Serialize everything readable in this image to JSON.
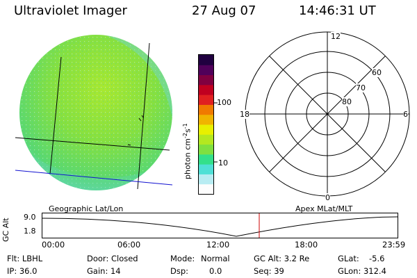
{
  "header": {
    "instrument": "Ultraviolet Imager",
    "date": "27 Aug 07",
    "time": "14:46:31 UT"
  },
  "colorbar": {
    "unit_label": "photon cm",
    "unit_sup1": "-2",
    "unit_s": "s",
    "unit_sup2": "-1",
    "ticks": [
      "100",
      "10"
    ],
    "colors": [
      "#fdfdfd",
      "#b8ecf2",
      "#4fe0d6",
      "#33e08a",
      "#7fe040",
      "#b4e820",
      "#e8f000",
      "#f0b400",
      "#f07a00",
      "#e02020",
      "#c00020",
      "#800040",
      "#50005a",
      "#200040"
    ]
  },
  "polar": {
    "clock_labels": [
      "12",
      "18",
      "6",
      "0"
    ],
    "lat_labels": [
      "60",
      "70",
      "80"
    ]
  },
  "labels": {
    "left_caption": "Geographic Lat/Lon",
    "right_caption": "Apex MLat/MLT"
  },
  "orbit": {
    "ylabel": "GC Alt",
    "yticks": [
      "9.0",
      "1.8"
    ],
    "xticks": [
      "00:00",
      "06:00",
      "12:00",
      "18:00",
      "23:59"
    ],
    "current_time_marker_color": "#cc0000"
  },
  "info": {
    "flt": "Flt: LBHL",
    "ip": "IP: 36.0",
    "door": "Door: Closed",
    "gain": "Gain: 14",
    "mode_label": "Mode:",
    "mode_value": "Normal",
    "dsp_label": "Dsp:",
    "dsp_value": "0.0",
    "gc_alt": "GC Alt: 3.2 Re",
    "seq": "Seq: 39",
    "glat_label": "GLat:",
    "glat_value": "-5.6",
    "glon": "GLon: 312.4"
  }
}
